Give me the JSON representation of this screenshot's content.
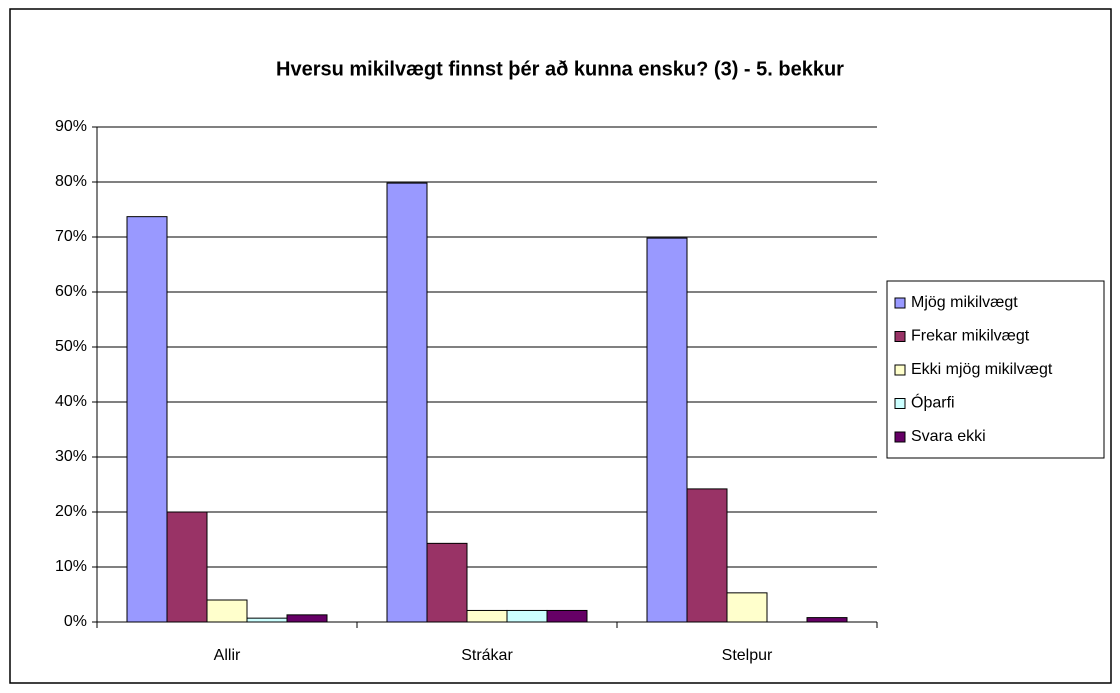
{
  "chart_data": {
    "type": "bar",
    "title": "Hversu mikilvægt finnst þér að kunna ensku? (3) - 5. bekkur",
    "categories": [
      "Allir",
      "Strákar",
      "Stelpur"
    ],
    "series": [
      {
        "name": "Mjög mikilvægt",
        "color": "#9999ff",
        "values": [
          73.7,
          79.8,
          69.8
        ]
      },
      {
        "name": "Frekar mikilvægt",
        "color": "#993366",
        "values": [
          20,
          14.3,
          24.2
        ]
      },
      {
        "name": "Ekki mjög mikilvægt",
        "color": "#ffffcc",
        "values": [
          4,
          2.1,
          5.3
        ]
      },
      {
        "name": "Óþarfi",
        "color": "#ccffff",
        "values": [
          0.7,
          2.1,
          0
        ]
      },
      {
        "name": "Svara ekki",
        "color": "#660066",
        "values": [
          1.3,
          2.1,
          0.8
        ]
      }
    ],
    "ylim": [
      0,
      90
    ],
    "yticks": [
      {
        "value": 0,
        "label": "0%"
      },
      {
        "value": 10,
        "label": "10%"
      },
      {
        "value": 20,
        "label": "20%"
      },
      {
        "value": 30,
        "label": "30%"
      },
      {
        "value": 40,
        "label": "40%"
      },
      {
        "value": 50,
        "label": "50%"
      },
      {
        "value": 60,
        "label": "60%"
      },
      {
        "value": 70,
        "label": "70%"
      },
      {
        "value": 80,
        "label": "80%"
      },
      {
        "value": 90,
        "label": "90%"
      }
    ],
    "grid": true,
    "legend": "right"
  }
}
